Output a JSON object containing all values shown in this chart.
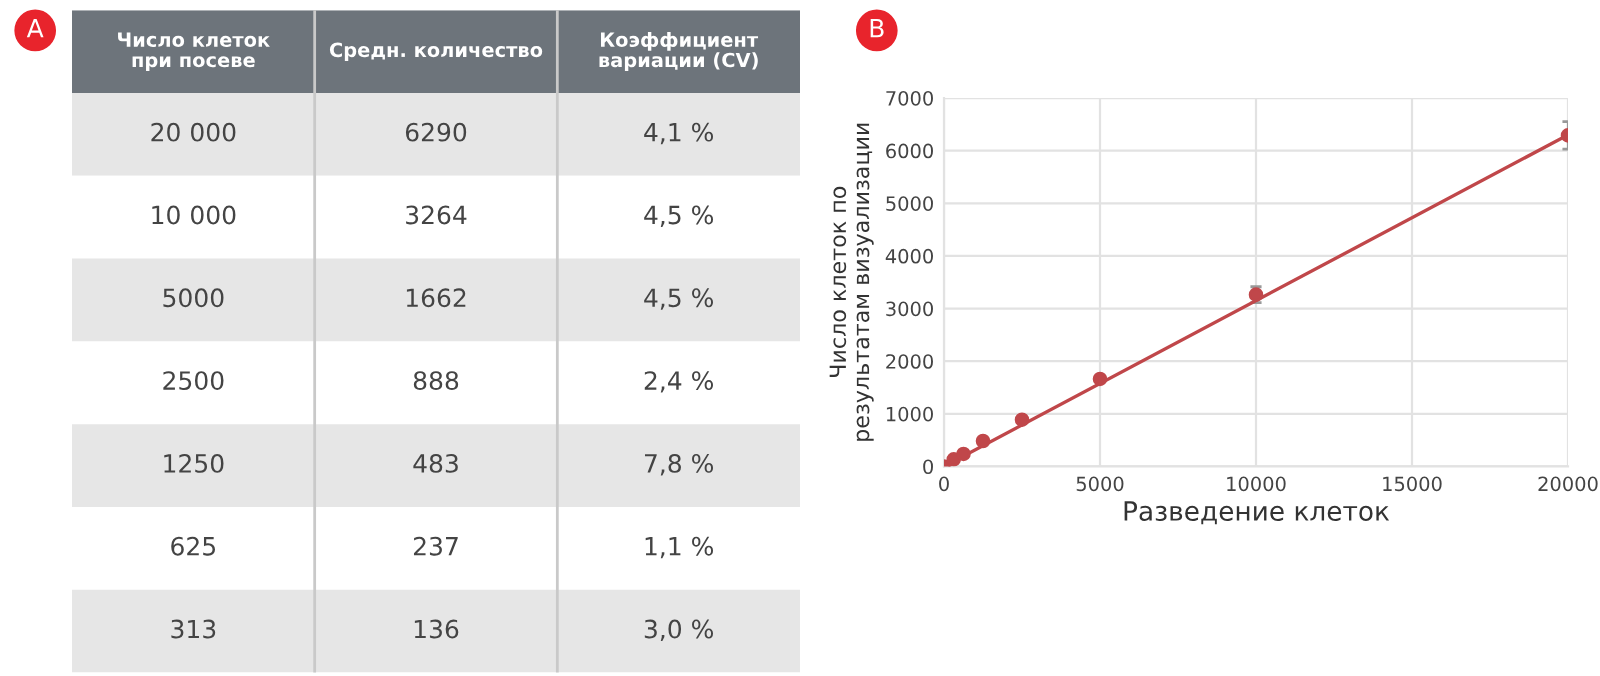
{
  "chart_data": [
    {
      "type": "other",
      "title": "A",
      "annotations": [
        "Число клеток\nпри посеве",
        "Средн. количество",
        "Коэффициент\nвариации (CV)",
        "20 000",
        "6290",
        "4,1 %",
        "10 000",
        "3264",
        "4,5 %",
        "5000",
        "1662",
        "4,5 %",
        "2500",
        "888",
        "2,4 %",
        "1250",
        "483",
        "7,8 %",
        "625",
        "237",
        "1,1 %",
        "313",
        "136",
        "3,0 %"
      ]
    },
    {
      "type": "scatter",
      "title": "B",
      "xlabel": "Разведение клеток",
      "ylabel": "Число клеток по\nрезультатам визуализации",
      "xlim": [
        0,
        20000
      ],
      "xticks": [
        0,
        5000,
        10000,
        15000,
        20000
      ],
      "ylim": [
        0,
        7000
      ],
      "yticks": [
        0,
        1000,
        2000,
        3000,
        4000,
        5000,
        6000,
        7000
      ],
      "grid": true,
      "series": [
        {
          "type": "scatter",
          "marker": "circle",
          "color": "#c0474a",
          "x": [
            0,
            313,
            625,
            1250,
            2500,
            5000,
            10000,
            20000
          ],
          "values": [
            0,
            136,
            237,
            483,
            888,
            1662,
            3264,
            6290
          ],
          "errors": [
            null,
            null,
            null,
            null,
            null,
            null,
            150,
            260
          ]
        },
        {
          "type": "line",
          "color": "#c0474a",
          "x": [
            0,
            20000
          ],
          "values": [
            0,
            6300
          ]
        }
      ]
    }
  ]
}
